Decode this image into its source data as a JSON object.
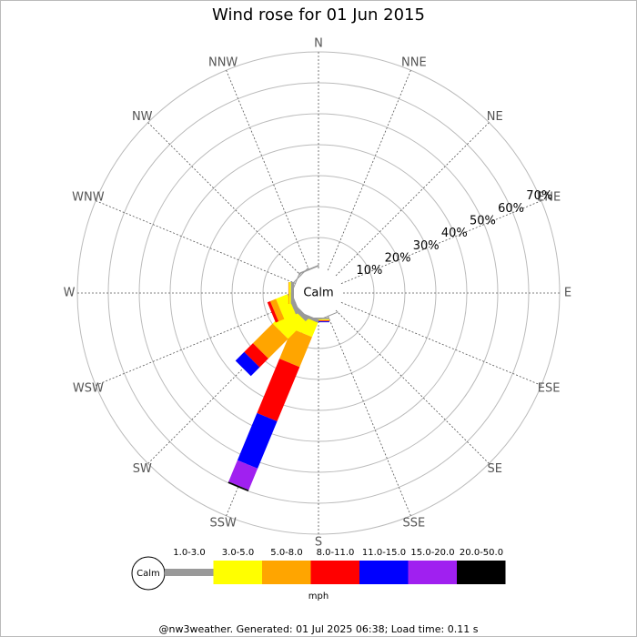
{
  "chart_data": {
    "type": "windrose",
    "title": "Wind rose for 01 Jun 2015",
    "categories": [
      "N",
      "NNE",
      "NE",
      "ENE",
      "E",
      "ESE",
      "SE",
      "SSE",
      "S",
      "SSW",
      "SW",
      "WSW",
      "W",
      "WNW",
      "NW",
      "NNW"
    ],
    "center_label": "Calm",
    "series": [
      {
        "name": "1.0-3.0",
        "color": "#999999",
        "values": [
          0,
          0,
          0,
          0,
          0,
          0,
          0,
          0.3,
          0.5,
          1,
          1.5,
          1.5,
          1,
          0.3,
          0.3,
          0.5
        ]
      },
      {
        "name": "3.0-5.0",
        "color": "#ffff00",
        "values": [
          0,
          0,
          0,
          0,
          0,
          0,
          0,
          0,
          0.3,
          5,
          8,
          4,
          0.5,
          0,
          0,
          0
        ]
      },
      {
        "name": "5.0-8.0",
        "color": "#ffa500",
        "values": [
          0,
          0,
          0,
          0,
          0,
          0,
          0,
          0,
          0.2,
          10.5,
          9,
          2,
          0.3,
          0,
          0,
          0
        ]
      },
      {
        "name": "8.0-11.0",
        "color": "#ff0000",
        "values": [
          0,
          0,
          0,
          0,
          0,
          0,
          0,
          0,
          0.2,
          19,
          4,
          1,
          0,
          0,
          0,
          0
        ]
      },
      {
        "name": "11.0-15.0",
        "color": "#0000ff",
        "values": [
          0,
          0,
          0,
          0,
          0,
          0,
          0,
          0,
          0.3,
          16.5,
          4,
          0,
          0,
          0,
          0,
          0
        ]
      },
      {
        "name": "15.0-20.0",
        "color": "#a020f0",
        "values": [
          0,
          0,
          0,
          0,
          0,
          0,
          0,
          0,
          0,
          7.5,
          0,
          0,
          0,
          0,
          0,
          0
        ]
      },
      {
        "name": "20.0-50.0",
        "color": "#000000",
        "values": [
          0,
          0,
          0,
          0,
          0,
          0,
          0,
          0,
          0,
          0.5,
          0,
          0,
          0,
          0,
          0,
          0
        ]
      }
    ],
    "rlim": [
      0,
      70
    ],
    "rticks": [
      {
        "value": 10,
        "label": "10%"
      },
      {
        "value": 20,
        "label": "20%"
      },
      {
        "value": 30,
        "label": "30%"
      },
      {
        "value": 40,
        "label": "40%"
      },
      {
        "value": 50,
        "label": "50%"
      },
      {
        "value": 60,
        "label": "60%"
      },
      {
        "value": 70,
        "label": "70%"
      }
    ],
    "legend_unit": "mph",
    "footer": "@nw3weather. Generated: 01 Jul 2025 06:38; Load time: 0.11 s"
  }
}
